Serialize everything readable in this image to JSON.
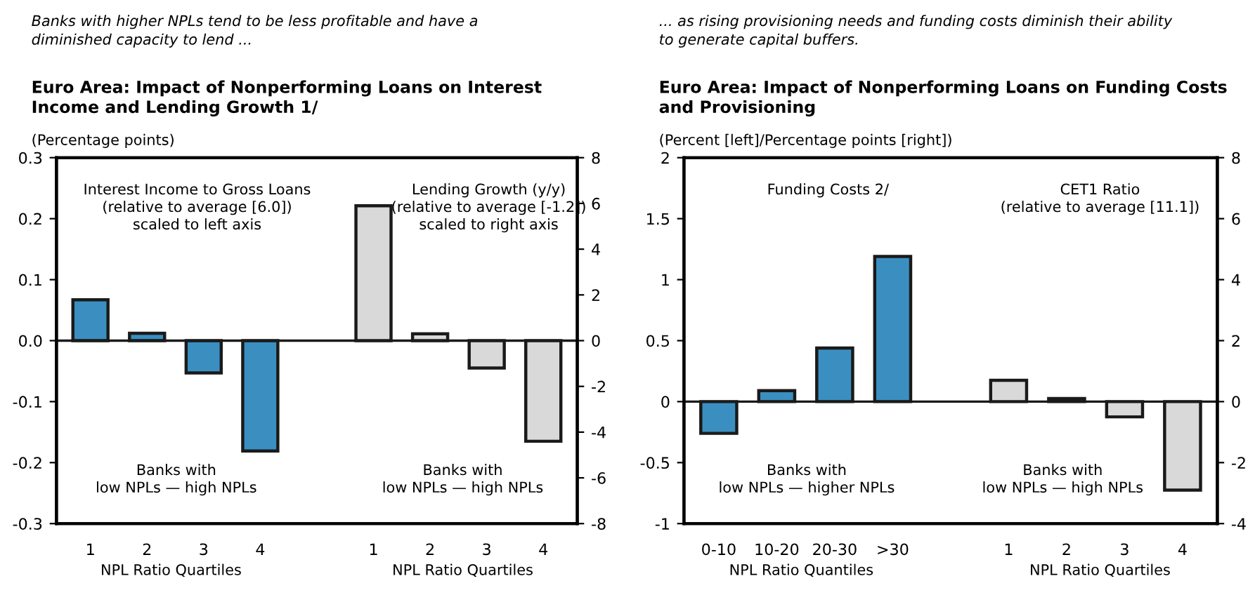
{
  "chart_data": [
    {
      "type": "bar",
      "subtitle": "Banks with higher NPLs tend to be less profitable and have a\ndiminished capacity to lend ...",
      "title": "Euro Area: Impact of Nonperforming Loans on Interest\nIncome and Lending Growth 1/",
      "ylabel": "(Percentage points)",
      "categories": [
        "1",
        "2",
        "3",
        "4",
        null,
        "1",
        "2",
        "3",
        "4"
      ],
      "series": [
        {
          "color": "#3a8fc0",
          "values": [
            0.067,
            0.012,
            -0.053,
            -0.181,
            null,
            null,
            null,
            null,
            null
          ]
        },
        {
          "color": "#d9d9d9",
          "axis": "y2",
          "values": [
            null,
            null,
            null,
            null,
            null,
            5.9,
            0.3,
            -1.2,
            -4.4
          ]
        }
      ],
      "ylim": [
        -0.3,
        0.3
      ],
      "yticks": [
        {
          "value": -0.3,
          "label": "-0.3"
        },
        {
          "value": -0.2,
          "label": "-0.2"
        },
        {
          "value": -0.1,
          "label": "-0.1"
        },
        {
          "value": 0,
          "label": "0.0"
        },
        0.1,
        0.2,
        0.3
      ],
      "y2lim": [
        -8,
        8
      ],
      "y2ticks": [
        -8,
        -6,
        -4,
        -2,
        0,
        2,
        4,
        6,
        8
      ],
      "annotations": [
        "Interest Income to Gross Loans\n(relative to average [6.0])\nscaled to left axis",
        "Lending Growth (y/y)\n(relative to average [-1.2])\nscaled to right axis",
        "Banks with\nlow NPLs — high NPLs",
        "Banks with\nlow NPLs — high NPLs",
        "NPL Ratio Quartiles",
        "NPL Ratio Quartiles"
      ],
      "ref_lines": [
        {
          "axis": "y",
          "value": 0,
          "color": "#1a1a1a"
        }
      ]
    },
    {
      "type": "bar",
      "subtitle": "... as rising provisioning needs and funding costs diminish their ability\nto generate capital buffers.",
      "title": "Euro Area: Impact of Nonperforming Loans on Funding Costs\nand Provisioning",
      "ylabel": "(Percent [left]/Percentage points [right])",
      "categories": [
        "0-10",
        "10-20",
        "20-30",
        ">30",
        null,
        "1",
        "2",
        "3",
        "4"
      ],
      "series": [
        {
          "color": "#3a8fc0",
          "values": [
            -0.26,
            0.09,
            0.44,
            1.19,
            null,
            null,
            null,
            null,
            null
          ]
        },
        {
          "color": "#d9d9d9",
          "axis": "y2",
          "values": [
            null,
            null,
            null,
            null,
            null,
            0.7,
            0.1,
            -0.5,
            -2.9
          ]
        }
      ],
      "ylim": [
        -1,
        2
      ],
      "yticks": [
        -1,
        -0.5,
        0,
        0.5,
        1,
        1.5,
        2
      ],
      "y2lim": [
        -4,
        8
      ],
      "y2ticks": [
        -4,
        -2,
        0,
        2,
        4,
        6,
        8
      ],
      "annotations": [
        "Funding Costs 2/",
        "CET1 Ratio\n(relative to average [11.1])",
        "Banks with\nlow NPLs — higher NPLs",
        "Banks with\nlow NPLs — high NPLs",
        "NPL Ratio Quantiles",
        "NPL Ratio Quartiles"
      ],
      "ref_lines": [
        {
          "axis": "y",
          "value": 0,
          "color": "#1a1a1a"
        }
      ]
    }
  ]
}
